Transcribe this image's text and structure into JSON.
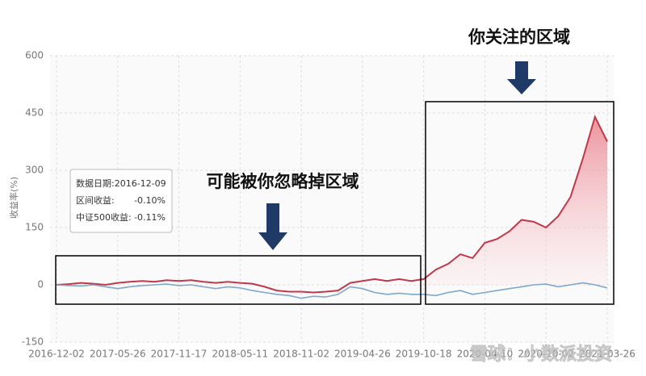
{
  "chart_data": {
    "type": "line",
    "y_label": "收益率(%)",
    "x": [
      "2016-12-02",
      "2017-01-06",
      "2017-02-10",
      "2017-03-17",
      "2017-04-21",
      "2017-05-26",
      "2017-06-30",
      "2017-08-04",
      "2017-09-08",
      "2017-10-13",
      "2017-11-17",
      "2017-12-22",
      "2018-01-26",
      "2018-03-02",
      "2018-04-06",
      "2018-05-11",
      "2018-06-15",
      "2018-07-20",
      "2018-08-24",
      "2018-09-28",
      "2018-11-02",
      "2018-12-07",
      "2019-01-11",
      "2019-02-15",
      "2019-03-22",
      "2019-04-26",
      "2019-05-31",
      "2019-07-05",
      "2019-08-09",
      "2019-09-13",
      "2019-10-18",
      "2019-11-22",
      "2019-12-27",
      "2020-01-31",
      "2020-03-06",
      "2020-04-10",
      "2020-05-15",
      "2020-06-19",
      "2020-07-24",
      "2020-08-28",
      "2020-10-02",
      "2020-11-06",
      "2020-12-11",
      "2021-01-15",
      "2021-02-19",
      "2021-03-26"
    ],
    "series": [
      {
        "color": "#c0394a",
        "values": [
          0,
          2,
          5,
          3,
          0,
          5,
          8,
          10,
          8,
          12,
          10,
          12,
          8,
          5,
          8,
          5,
          3,
          -5,
          -15,
          -18,
          -18,
          -20,
          -18,
          -15,
          5,
          10,
          15,
          10,
          15,
          10,
          15,
          40,
          55,
          80,
          70,
          110,
          120,
          140,
          170,
          165,
          150,
          180,
          230,
          330,
          440,
          375
        ]
      },
      {
        "color": "#7fa7cc",
        "values": [
          0,
          -2,
          -3,
          0,
          -5,
          -10,
          -5,
          -2,
          0,
          2,
          -2,
          0,
          -5,
          -10,
          -5,
          -8,
          -15,
          -20,
          -25,
          -28,
          -35,
          -30,
          -32,
          -25,
          -5,
          -10,
          -20,
          -25,
          -22,
          -25,
          -25,
          -28,
          -20,
          -15,
          -25,
          -20,
          -15,
          -10,
          -5,
          0,
          2,
          -5,
          0,
          5,
          0,
          -8
        ]
      }
    ],
    "xlim": [
      "2016-12-02",
      "2021-03-26"
    ],
    "xticks": [
      "2016-12-02",
      "2017-05-26",
      "2017-11-17",
      "2018-05-11",
      "2018-11-02",
      "2019-04-26",
      "2019-10-18",
      "2020-04-10",
      "2020-10-02",
      "2021-03-26"
    ],
    "ylim": [
      -150,
      600
    ],
    "yticks": [
      -150,
      0,
      150,
      300,
      450,
      600
    ],
    "grid": true,
    "annotations": [
      "你关注的区域",
      "可能被你忽略掉区域"
    ],
    "tooltip": {
      "date": "数据日期:2016-12-09",
      "fund_label": "区间收益:",
      "fund_value": "-0.10%",
      "index_label": "中证500收益:",
      "index_value": "-0.11%"
    },
    "watermark": "雪球：小数派投资"
  }
}
